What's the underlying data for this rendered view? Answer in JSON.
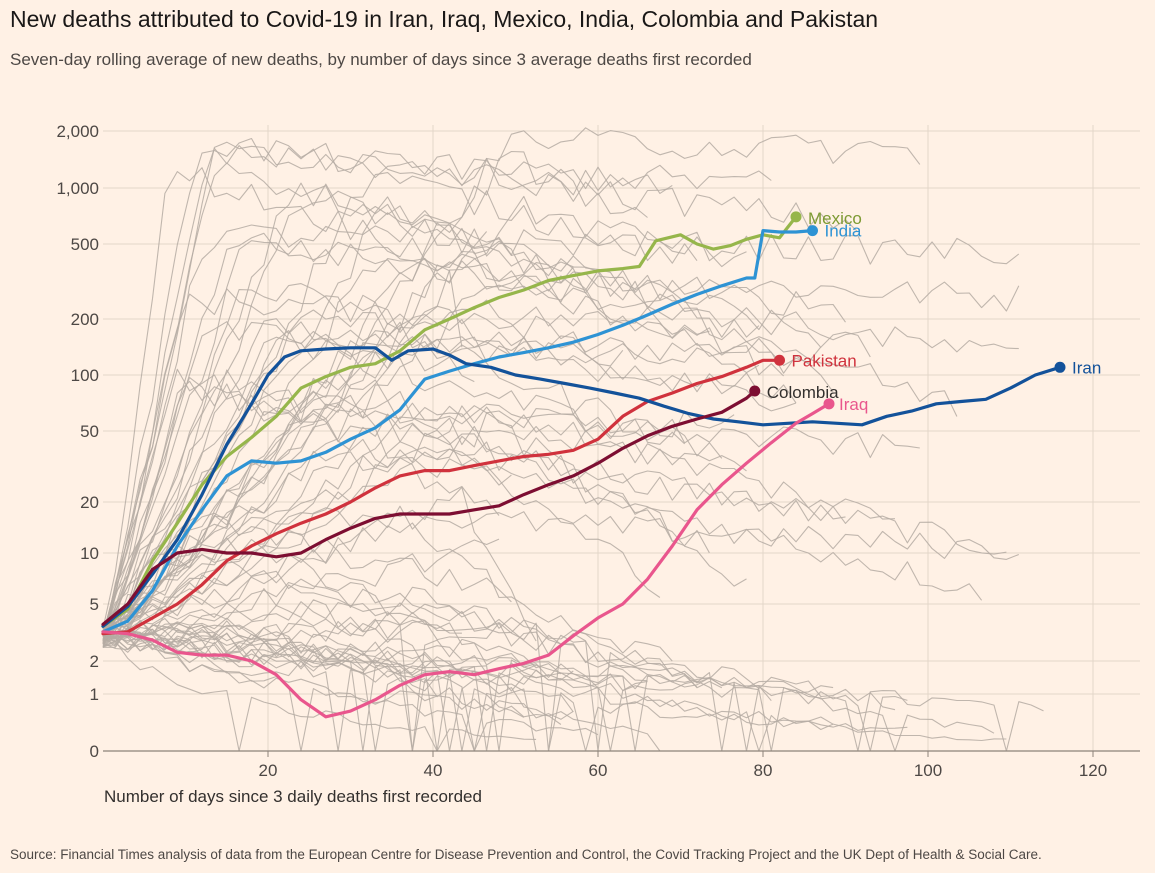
{
  "title": "New deaths attributed to Covid-19 in Iran, Iraq, Mexico, India, Colombia and Pakistan",
  "subtitle": "Seven-day rolling average of new deaths, by number of days since 3 average deaths first recorded",
  "source": "Source: Financial Times analysis of data from the European Centre for Disease Prevention and Control, the Covid Tracking Project and the UK Dept of Health & Social Care.",
  "chart_data": {
    "type": "line",
    "xlabel": "Number of days since 3 daily deaths first recorded",
    "ylabel": "",
    "yscale": "log (symmetric, 0 at bottom)",
    "xlim": [
      0,
      126
    ],
    "ylim": [
      0,
      2000
    ],
    "x_ticks": [
      "20",
      "40",
      "60",
      "80",
      "100",
      "120"
    ],
    "x_tick_values": [
      20,
      40,
      60,
      80,
      100,
      120
    ],
    "y_ticks": [
      "2,000",
      "1,000",
      "500",
      "200",
      "100",
      "50",
      "20",
      "10",
      "5",
      "2",
      "1",
      "0"
    ],
    "y_tick_values": [
      2000,
      1000,
      500,
      200,
      100,
      50,
      20,
      10,
      5,
      2,
      1,
      0
    ],
    "grid": true,
    "background_series_color": "#b5aca3",
    "series": [
      {
        "name": "Mexico",
        "color": "#96b64b",
        "label_color": "#7d9a33",
        "points": [
          [
            0,
            3.5
          ],
          [
            3,
            4.6
          ],
          [
            6,
            9
          ],
          [
            9,
            15
          ],
          [
            12,
            25
          ],
          [
            15,
            36
          ],
          [
            18,
            46
          ],
          [
            21,
            60
          ],
          [
            24,
            85
          ],
          [
            27,
            98
          ],
          [
            30,
            110
          ],
          [
            33,
            115
          ],
          [
            36,
            135
          ],
          [
            39,
            175
          ],
          [
            42,
            200
          ],
          [
            45,
            230
          ],
          [
            48,
            260
          ],
          [
            51,
            285
          ],
          [
            54,
            320
          ],
          [
            57,
            340
          ],
          [
            60,
            360
          ],
          [
            63,
            370
          ],
          [
            65,
            380
          ],
          [
            67,
            520
          ],
          [
            70,
            560
          ],
          [
            72,
            500
          ],
          [
            74,
            470
          ],
          [
            76,
            490
          ],
          [
            78,
            530
          ],
          [
            80,
            560
          ],
          [
            82,
            540
          ],
          [
            84,
            700
          ]
        ]
      },
      {
        "name": "India",
        "color": "#2e93d4",
        "label_color": "#2e93d4",
        "points": [
          [
            0,
            3.2
          ],
          [
            3,
            3.8
          ],
          [
            6,
            6
          ],
          [
            9,
            11
          ],
          [
            12,
            18
          ],
          [
            15,
            28
          ],
          [
            18,
            34
          ],
          [
            21,
            33
          ],
          [
            24,
            34
          ],
          [
            27,
            38
          ],
          [
            30,
            45
          ],
          [
            33,
            52
          ],
          [
            36,
            65
          ],
          [
            39,
            95
          ],
          [
            42,
            105
          ],
          [
            45,
            115
          ],
          [
            48,
            125
          ],
          [
            51,
            132
          ],
          [
            54,
            140
          ],
          [
            57,
            150
          ],
          [
            60,
            165
          ],
          [
            63,
            185
          ],
          [
            66,
            210
          ],
          [
            69,
            240
          ],
          [
            72,
            270
          ],
          [
            75,
            300
          ],
          [
            78,
            330
          ],
          [
            79,
            330
          ],
          [
            80,
            590
          ],
          [
            82,
            580
          ],
          [
            84,
            580
          ],
          [
            86,
            590
          ]
        ]
      },
      {
        "name": "Pakistan",
        "color": "#d0323d",
        "label_color": "#d0323d",
        "points": [
          [
            0,
            3.1
          ],
          [
            3,
            3.2
          ],
          [
            6,
            4
          ],
          [
            9,
            5
          ],
          [
            12,
            6.5
          ],
          [
            15,
            9
          ],
          [
            18,
            11
          ],
          [
            21,
            13
          ],
          [
            24,
            15
          ],
          [
            27,
            17
          ],
          [
            30,
            20
          ],
          [
            33,
            24
          ],
          [
            36,
            28
          ],
          [
            39,
            30
          ],
          [
            42,
            30
          ],
          [
            45,
            32
          ],
          [
            48,
            34
          ],
          [
            51,
            36
          ],
          [
            54,
            37
          ],
          [
            57,
            39
          ],
          [
            60,
            45
          ],
          [
            63,
            60
          ],
          [
            66,
            72
          ],
          [
            69,
            80
          ],
          [
            72,
            90
          ],
          [
            75,
            98
          ],
          [
            78,
            110
          ],
          [
            80,
            120
          ],
          [
            82,
            120
          ]
        ]
      },
      {
        "name": "Iran",
        "color": "#13529a",
        "label_color": "#13529a",
        "points": [
          [
            0,
            3.5
          ],
          [
            3,
            4.8
          ],
          [
            6,
            7.5
          ],
          [
            9,
            12
          ],
          [
            12,
            22
          ],
          [
            15,
            42
          ],
          [
            18,
            70
          ],
          [
            20,
            100
          ],
          [
            22,
            125
          ],
          [
            24,
            135
          ],
          [
            27,
            138
          ],
          [
            30,
            140
          ],
          [
            33,
            140
          ],
          [
            35,
            120
          ],
          [
            37,
            135
          ],
          [
            40,
            138
          ],
          [
            42,
            128
          ],
          [
            44,
            115
          ],
          [
            47,
            110
          ],
          [
            50,
            100
          ],
          [
            53,
            95
          ],
          [
            56,
            90
          ],
          [
            59,
            85
          ],
          [
            62,
            80
          ],
          [
            65,
            75
          ],
          [
            68,
            68
          ],
          [
            71,
            62
          ],
          [
            74,
            58
          ],
          [
            77,
            56
          ],
          [
            80,
            54
          ],
          [
            83,
            55
          ],
          [
            86,
            56
          ],
          [
            89,
            55
          ],
          [
            92,
            54
          ],
          [
            95,
            60
          ],
          [
            98,
            64
          ],
          [
            101,
            70
          ],
          [
            104,
            72
          ],
          [
            107,
            74
          ],
          [
            110,
            85
          ],
          [
            113,
            100
          ],
          [
            116,
            110
          ]
        ]
      },
      {
        "name": "Colombia",
        "color": "#7d0e32",
        "label_color": "#33302e",
        "points": [
          [
            0,
            3.6
          ],
          [
            3,
            5
          ],
          [
            6,
            8
          ],
          [
            9,
            10
          ],
          [
            12,
            10.5
          ],
          [
            15,
            10
          ],
          [
            18,
            10
          ],
          [
            21,
            9.5
          ],
          [
            24,
            10
          ],
          [
            27,
            12
          ],
          [
            30,
            14
          ],
          [
            33,
            16
          ],
          [
            36,
            17
          ],
          [
            39,
            17
          ],
          [
            42,
            17
          ],
          [
            45,
            18
          ],
          [
            48,
            19
          ],
          [
            51,
            22
          ],
          [
            54,
            25
          ],
          [
            57,
            28
          ],
          [
            60,
            33
          ],
          [
            63,
            40
          ],
          [
            66,
            47
          ],
          [
            69,
            53
          ],
          [
            72,
            58
          ],
          [
            75,
            63
          ],
          [
            78,
            75
          ],
          [
            79,
            82
          ]
        ]
      },
      {
        "name": "Iraq",
        "color": "#e9568d",
        "label_color": "#e9568d",
        "points": [
          [
            0,
            3.2
          ],
          [
            3,
            3.1
          ],
          [
            6,
            2.8
          ],
          [
            9,
            2.3
          ],
          [
            12,
            2.2
          ],
          [
            15,
            2.2
          ],
          [
            18,
            2.0
          ],
          [
            21,
            1.5
          ],
          [
            24,
            0.9
          ],
          [
            27,
            0.6
          ],
          [
            30,
            0.7
          ],
          [
            33,
            0.9
          ],
          [
            36,
            1.2
          ],
          [
            39,
            1.5
          ],
          [
            42,
            1.6
          ],
          [
            45,
            1.5
          ],
          [
            48,
            1.7
          ],
          [
            51,
            1.9
          ],
          [
            54,
            2.2
          ],
          [
            57,
            3
          ],
          [
            60,
            4
          ],
          [
            63,
            5
          ],
          [
            66,
            7
          ],
          [
            69,
            11
          ],
          [
            72,
            18
          ],
          [
            75,
            25
          ],
          [
            78,
            33
          ],
          [
            81,
            43
          ],
          [
            84,
            55
          ],
          [
            86,
            62
          ],
          [
            88,
            70
          ]
        ]
      }
    ]
  }
}
